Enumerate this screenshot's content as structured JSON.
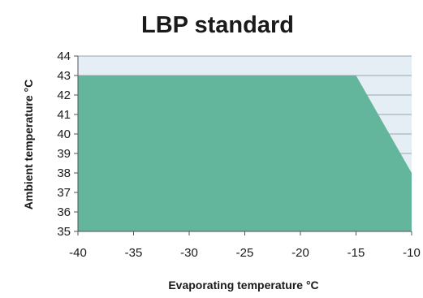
{
  "chart_data": {
    "type": "area",
    "title": "LBP standard",
    "xlabel": "Evaporating temperature °C",
    "ylabel": "Ambient temperature °C",
    "xlim": [
      -40,
      -10
    ],
    "ylim": [
      35,
      44
    ],
    "x_ticks": [
      "-40",
      "-35",
      "-30",
      "-25",
      "-20",
      "-15",
      "-10"
    ],
    "y_ticks": [
      "35",
      "36",
      "37",
      "38",
      "39",
      "40",
      "41",
      "42",
      "43",
      "44"
    ],
    "series": [
      {
        "x": [
          -40,
          -15,
          -10
        ],
        "y": [
          43,
          43,
          38
        ]
      }
    ],
    "grid": true,
    "legend": "none",
    "colors": {
      "area_fill": "#63b59b",
      "plot_background": "#e4eef4",
      "gridline": "#9aa8b2",
      "axis": "#555555",
      "text": "#1a1a1a"
    }
  }
}
